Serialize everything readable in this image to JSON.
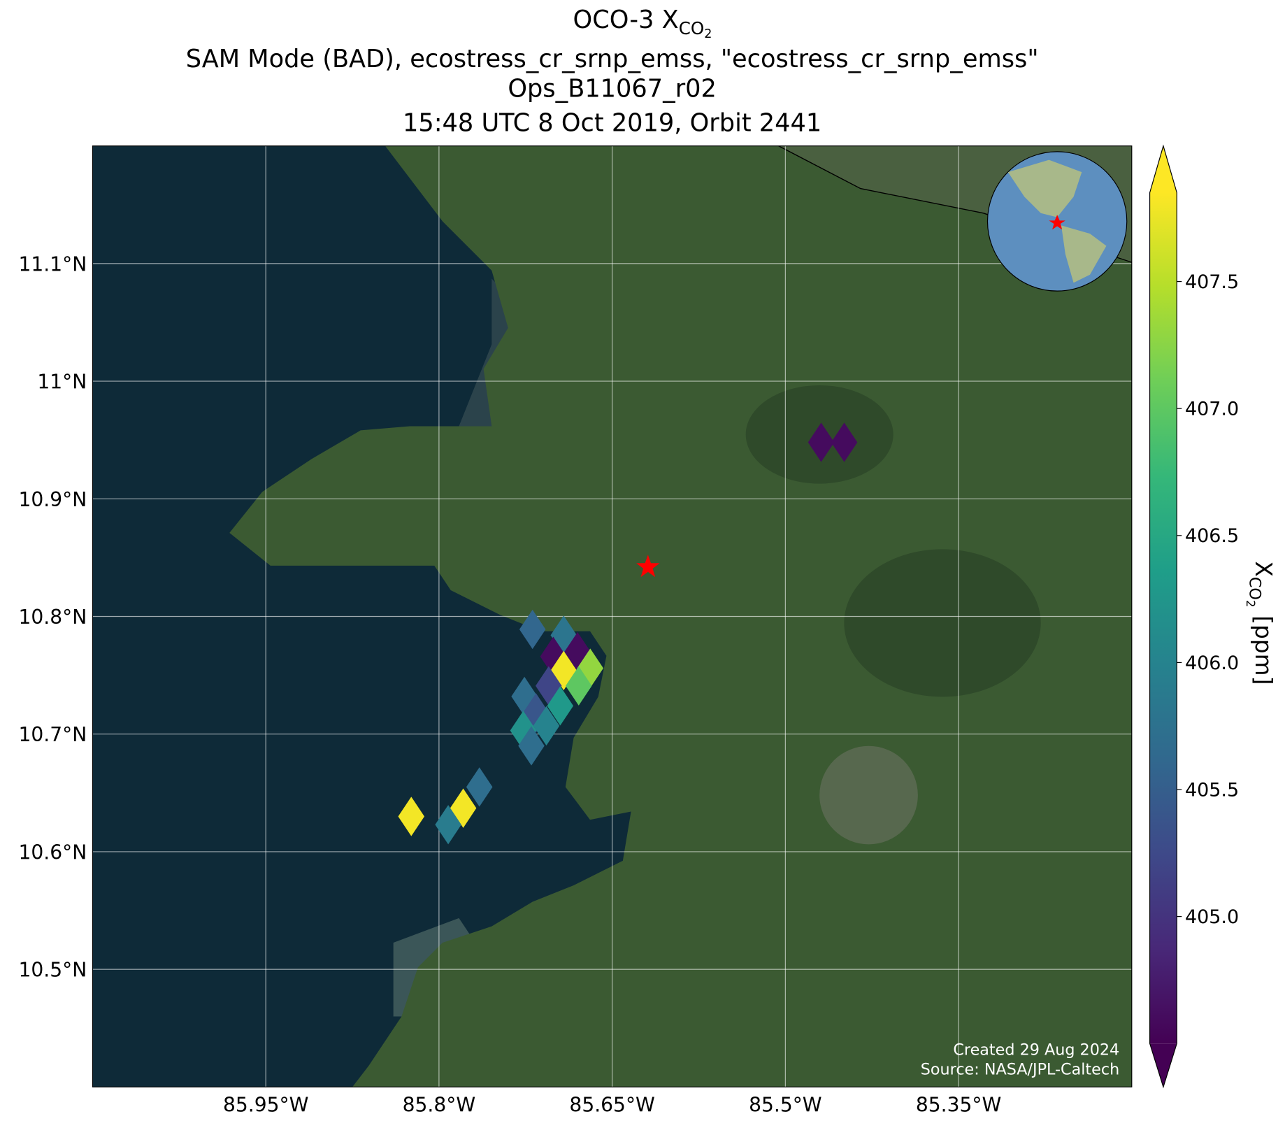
{
  "chart_data": {
    "type": "scatter",
    "title": {
      "text": "OCO-3 X",
      "subscript": "CO",
      "subscript2": "2"
    },
    "subtitle": [
      "SAM Mode (BAD), ecostress_cr_srnp_emss, \"ecostress_cr_srnp_emss\"",
      "Ops_B11067_r02",
      "15:48 UTC 8 Oct 2019, Orbit 2441"
    ],
    "x": [
      -85.469,
      -85.449,
      -85.719,
      -85.692,
      -85.701,
      -85.68,
      -85.692,
      -85.669,
      -85.705,
      -85.679,
      -85.726,
      -85.716,
      -85.695,
      -85.727,
      -85.707,
      -85.72,
      -85.765,
      -85.779,
      -85.792,
      -85.824
    ],
    "y": [
      10.948,
      10.948,
      10.789,
      10.784,
      10.766,
      10.77,
      10.754,
      10.756,
      10.741,
      10.741,
      10.732,
      10.718,
      10.724,
      10.703,
      10.707,
      10.69,
      10.655,
      10.637,
      10.623,
      10.63
    ],
    "values": [
      404.6,
      404.6,
      405.6,
      405.8,
      404.6,
      404.6,
      407.8,
      407.3,
      405.2,
      407.0,
      405.7,
      405.4,
      406.3,
      406.2,
      406.0,
      405.7,
      405.7,
      407.8,
      405.9,
      407.8
    ],
    "colormap": "viridis",
    "clim": [
      404.5,
      407.85
    ],
    "cticks": [
      {
        "value": 405,
        "label": "405.0"
      },
      405.5,
      {
        "value": 406,
        "label": "406.0"
      },
      406.5,
      {
        "value": 407,
        "label": "407.0"
      },
      407.5
    ],
    "colorbar_label": {
      "symbol": "X",
      "subscript": "CO",
      "subscript2": "2",
      "unit": "[ppm]"
    },
    "xlim": [
      -86.1,
      -85.2
    ],
    "ylim": [
      10.4,
      11.2
    ],
    "xticks": [
      {
        "value": -85.95,
        "label": "85.95°W"
      },
      {
        "value": -85.8,
        "label": "85.8°W"
      },
      {
        "value": -85.65,
        "label": "85.65°W"
      },
      {
        "value": -85.5,
        "label": "85.5°W"
      },
      {
        "value": -85.35,
        "label": "85.35°W"
      }
    ],
    "yticks": [
      {
        "value": 10.5,
        "label": "10.5°N"
      },
      {
        "value": 10.6,
        "label": "10.6°N"
      },
      {
        "value": 10.7,
        "label": "10.7°N"
      },
      {
        "value": 10.8,
        "label": "10.8°N"
      },
      {
        "value": 10.9,
        "label": "10.9°N"
      },
      {
        "value": 11,
        "label": "11°N"
      },
      {
        "value": 11.1,
        "label": "11.1°N"
      }
    ],
    "grid": true,
    "target": {
      "x": -85.619,
      "y": 10.842,
      "color": "#ff0000"
    },
    "annotations": [
      "Created 29 Aug 2024",
      "Source: NASA/JPL-Caltech"
    ]
  }
}
